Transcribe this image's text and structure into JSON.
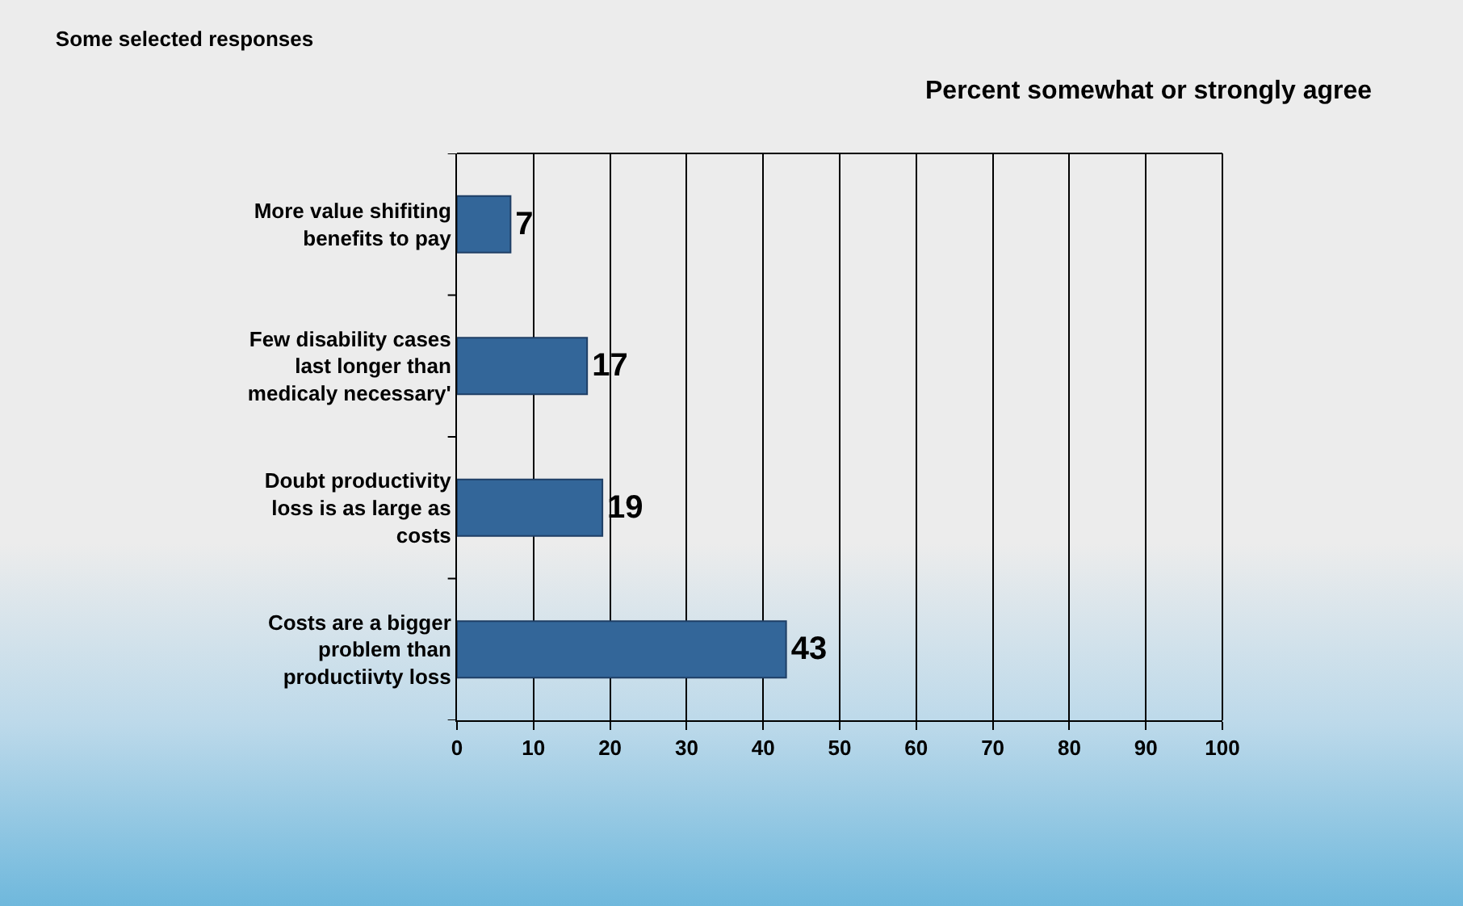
{
  "chart_data": {
    "type": "bar",
    "orientation": "horizontal",
    "title": "Some selected responses",
    "subtitle": "Percent somewhat or strongly agree",
    "categories": [
      "More value shifiting benefits to pay",
      "Few disability cases last longer than medicaly necessary'",
      "Doubt productivity loss is as large as costs",
      "Costs are a bigger problem than productiivty loss"
    ],
    "values": [
      7,
      17,
      19,
      43
    ],
    "color": "#336699",
    "data_labels": true,
    "xlim": [
      0,
      100
    ],
    "xticks": [
      0,
      10,
      20,
      30,
      40,
      50,
      60,
      70,
      80,
      90,
      100
    ],
    "grid": "x",
    "legend": false
  }
}
